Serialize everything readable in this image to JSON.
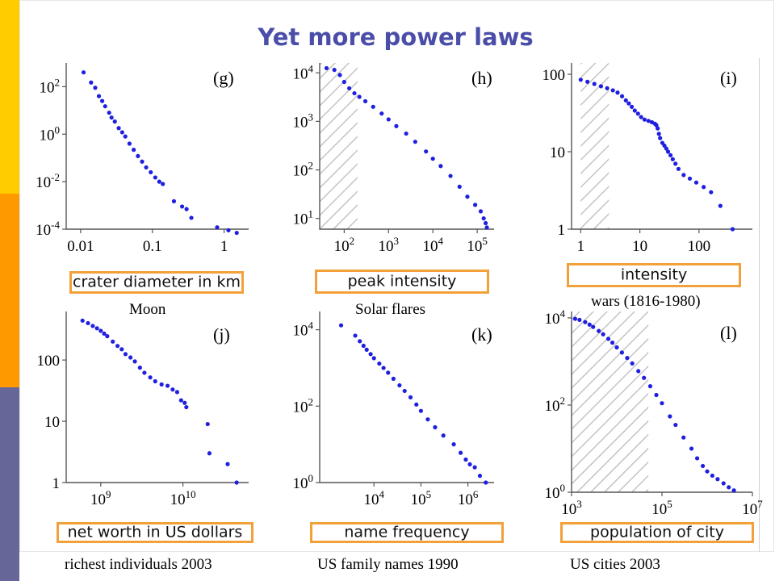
{
  "slide": {
    "title": "Yet more power laws",
    "colors": {
      "stripe_top": "#ffcc00",
      "stripe_mid": "#ff9900",
      "stripe_bottom": "#666699",
      "title": "#4a4ea8",
      "points": "#1f1fe0",
      "highlight_box": "#f2a13a",
      "hatch": "#c4c4c4"
    }
  },
  "chart_data": [
    {
      "panel": "(g)",
      "type": "scatter",
      "xscale": "log",
      "yscale": "log",
      "xlabel": "crater diameter in km",
      "caption": "Moon",
      "xlim": [
        0.0063,
        2.2
      ],
      "ylim": [
        0.0001,
        1000
      ],
      "xticks": [
        {
          "v": 0.01,
          "label": "0.01"
        },
        {
          "v": 0.1,
          "label": "0.1"
        },
        {
          "v": 1,
          "label": "1"
        }
      ],
      "yticks": [
        {
          "v": 0.0001,
          "b": "10",
          "e": "-4"
        },
        {
          "v": 0.01,
          "b": "10",
          "e": "-2"
        },
        {
          "v": 1,
          "b": "10",
          "e": "0"
        },
        {
          "v": 100,
          "b": "10",
          "e": "2"
        }
      ],
      "x": [
        0.011,
        0.014,
        0.016,
        0.018,
        0.02,
        0.022,
        0.025,
        0.027,
        0.03,
        0.034,
        0.038,
        0.042,
        0.048,
        0.055,
        0.063,
        0.072,
        0.082,
        0.095,
        0.11,
        0.125,
        0.14,
        0.2,
        0.26,
        0.3,
        0.35,
        0.8,
        1.15,
        1.5
      ],
      "y": [
        400,
        150,
        90,
        40,
        25,
        15,
        8,
        5,
        3.4,
        1.8,
        1.2,
        0.8,
        0.4,
        0.22,
        0.12,
        0.07,
        0.04,
        0.025,
        0.015,
        0.01,
        0.008,
        0.0015,
        0.0009,
        0.0007,
        0.0003,
        0.00012,
        9e-05,
        7e-05
      ]
    },
    {
      "panel": "(h)",
      "type": "scatter",
      "xscale": "log",
      "yscale": "log",
      "xlabel": "peak intensity",
      "caption": "Solar flares",
      "xlim": [
        28,
        240000
      ],
      "ylim": [
        6,
        16000
      ],
      "shaded_x": [
        28,
        200
      ],
      "xticks": [
        {
          "v": 100,
          "b": "10",
          "e": "2"
        },
        {
          "v": 1000,
          "b": "10",
          "e": "3"
        },
        {
          "v": 10000,
          "b": "10",
          "e": "4"
        },
        {
          "v": 100000,
          "b": "10",
          "e": "5"
        }
      ],
      "yticks": [
        {
          "v": 10,
          "b": "10",
          "e": "1"
        },
        {
          "v": 100,
          "b": "10",
          "e": "2"
        },
        {
          "v": 1000,
          "b": "10",
          "e": "3"
        },
        {
          "v": 10000,
          "b": "10",
          "e": "4"
        }
      ],
      "x": [
        40,
        60,
        80,
        100,
        130,
        170,
        220,
        300,
        450,
        700,
        1000,
        1500,
        2500,
        4000,
        7000,
        10000,
        15000,
        25000,
        40000,
        60000,
        90000,
        120000,
        140000,
        155000,
        165000
      ],
      "y": [
        12500,
        11500,
        9000,
        6500,
        4800,
        3800,
        3200,
        2600,
        2000,
        1450,
        1100,
        800,
        560,
        380,
        240,
        170,
        120,
        75,
        45,
        28,
        19,
        14,
        10,
        8,
        6.5
      ]
    },
    {
      "panel": "(i)",
      "type": "scatter",
      "xscale": "log",
      "yscale": "log",
      "xlabel": "intensity",
      "caption": "wars (1816-1980)",
      "xlim": [
        0.7,
        800
      ],
      "ylim": [
        1,
        140
      ],
      "shaded_x": [
        1,
        3
      ],
      "xticks": [
        {
          "v": 1,
          "label": "1"
        },
        {
          "v": 10,
          "label": "10"
        },
        {
          "v": 100,
          "label": "100"
        }
      ],
      "yticks": [
        {
          "v": 1,
          "label": "1"
        },
        {
          "v": 10,
          "label": "10"
        },
        {
          "v": 100,
          "label": "100"
        }
      ],
      "x": [
        1,
        1.3,
        1.7,
        2.2,
        2.8,
        3.5,
        4.2,
        5,
        5.8,
        6.5,
        7.3,
        8.2,
        9.3,
        10.5,
        12,
        14,
        16,
        18,
        19,
        20,
        21,
        22,
        24,
        26,
        28,
        30,
        33,
        36,
        40,
        45,
        55,
        70,
        90,
        120,
        160,
        230,
        370
      ],
      "y": [
        85,
        80,
        75,
        70,
        66,
        62,
        58,
        52,
        46,
        42,
        38,
        34,
        31,
        28,
        26,
        25,
        24,
        23,
        22,
        20,
        17,
        15,
        13,
        12,
        11,
        10,
        9,
        8,
        7,
        6,
        5,
        4.5,
        4,
        3.5,
        3,
        2,
        1
      ]
    },
    {
      "panel": "(j)",
      "type": "scatter",
      "xscale": "log",
      "yscale": "log",
      "xlabel": "net worth in US dollars",
      "caption": "richest individuals 2003",
      "xlim": [
        380000000,
        63000000000
      ],
      "ylim": [
        1,
        620
      ],
      "xticks": [
        {
          "v": 1000000000,
          "b": "10",
          "e": "9"
        },
        {
          "v": 10000000000,
          "b": "10",
          "e": "10"
        }
      ],
      "yticks": [
        {
          "v": 1,
          "label": "1"
        },
        {
          "v": 10,
          "label": "10"
        },
        {
          "v": 100,
          "label": "100"
        }
      ],
      "x": [
        600000000,
        700000000,
        800000000,
        900000000,
        1000000000,
        1100000000,
        1200000000,
        1400000000,
        1600000000,
        1800000000,
        2000000000,
        2300000000,
        2600000000,
        3000000000,
        3400000000,
        4000000000,
        4600000000,
        5500000000,
        6500000000,
        7500000000,
        8500000000,
        9500000000,
        10500000000,
        11000000000,
        20000000000,
        21000000000,
        35000000000,
        45000000000
      ],
      "y": [
        440,
        400,
        360,
        330,
        300,
        270,
        245,
        200,
        170,
        150,
        125,
        110,
        95,
        75,
        62,
        52,
        45,
        40,
        38,
        33,
        30,
        22,
        20,
        17,
        9,
        3,
        2,
        1
      ]
    },
    {
      "panel": "(k)",
      "type": "scatter",
      "xscale": "log",
      "yscale": "log",
      "xlabel": "name frequency",
      "caption": "US family names 1990",
      "xlim": [
        700,
        3600000
      ],
      "ylim": [
        1,
        30000
      ],
      "xticks": [
        {
          "v": 10000,
          "b": "10",
          "e": "4"
        },
        {
          "v": 100000,
          "b": "10",
          "e": "5"
        },
        {
          "v": 1000000,
          "b": "10",
          "e": "6"
        }
      ],
      "yticks": [
        {
          "v": 1,
          "b": "10",
          "e": "0"
        },
        {
          "v": 100,
          "b": "10",
          "e": "2"
        },
        {
          "v": 10000,
          "b": "10",
          "e": "4"
        }
      ],
      "x": [
        2000,
        4000,
        5000,
        6000,
        7000,
        8500,
        10000,
        13000,
        16000,
        20000,
        26000,
        35000,
        45000,
        60000,
        80000,
        100000,
        140000,
        200000,
        300000,
        500000,
        700000,
        900000,
        1100000,
        1400000,
        1800000,
        2400000
      ],
      "y": [
        13000,
        7000,
        5000,
        3800,
        3000,
        2300,
        1800,
        1300,
        1000,
        750,
        520,
        350,
        250,
        170,
        110,
        75,
        45,
        28,
        17,
        10,
        6,
        4,
        3,
        2.5,
        1.5,
        1
      ]
    },
    {
      "panel": "(l)",
      "type": "scatter",
      "xscale": "log",
      "yscale": "log",
      "xlabel": "population of city",
      "caption": "US cities 2003",
      "xlim": [
        1000,
        10000000
      ],
      "ylim": [
        1,
        14000
      ],
      "shaded_x": [
        1000,
        50000
      ],
      "xticks": [
        {
          "v": 1000,
          "b": "10",
          "e": "3"
        },
        {
          "v": 100000,
          "b": "10",
          "e": "5"
        },
        {
          "v": 10000000,
          "b": "10",
          "e": "7"
        }
      ],
      "yticks": [
        {
          "v": 1,
          "b": "10",
          "e": "0"
        },
        {
          "v": 100,
          "b": "10",
          "e": "2"
        },
        {
          "v": 10000,
          "b": "10",
          "e": "4"
        }
      ],
      "x": [
        1200,
        1500,
        2000,
        2500,
        3000,
        4000,
        5000,
        6500,
        8000,
        10000,
        13000,
        17000,
        22000,
        30000,
        40000,
        55000,
        75000,
        100000,
        150000,
        200000,
        300000,
        450000,
        600000,
        800000,
        1000000,
        1300000,
        1700000,
        2300000,
        3000000,
        3900000
      ],
      "y": [
        9500,
        9000,
        8000,
        7000,
        6200,
        5000,
        4200,
        3300,
        2700,
        2100,
        1600,
        1200,
        900,
        600,
        420,
        270,
        170,
        110,
        55,
        35,
        18,
        10,
        6,
        4,
        3,
        2.4,
        2,
        1.6,
        1.3,
        1.1
      ]
    }
  ]
}
